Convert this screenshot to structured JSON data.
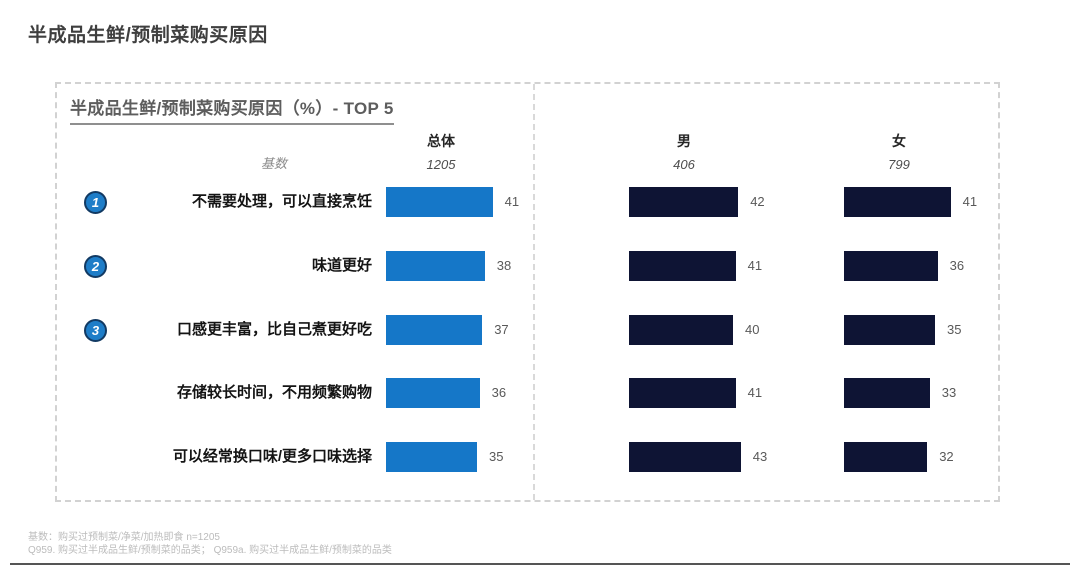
{
  "page": {
    "title": "半成品生鲜/预制菜购买原因",
    "footnotes": [
      "基数：购买过预制菜/净菜/加热即食 n=1205",
      "Q959. 购买过半成品生鲜/预制菜的品类； Q959a. 购买过半成品生鲜/预制菜的品类"
    ]
  },
  "chart_data": {
    "type": "bar",
    "orientation": "horizontal",
    "title": "半成品生鲜/预制菜购买原因（%）- TOP 5",
    "unit": "%",
    "xlim": [
      0,
      50
    ],
    "grid": false,
    "base_row_label": "基数",
    "categories": [
      "不需要处理，可以直接烹饪",
      "味道更好",
      "口感更丰富，比自己煮更好吃",
      "存储较长时间，不用频繁购物",
      "可以经常换口味/更多口味选择"
    ],
    "rank_badges": [
      "1",
      "2",
      "3"
    ],
    "series": [
      {
        "name": "总体",
        "base": "1205",
        "color": "#1577c8",
        "values": [
          41,
          38,
          37,
          36,
          35
        ]
      },
      {
        "name": "男",
        "base": "406",
        "color": "#0e1434",
        "values": [
          42,
          41,
          40,
          41,
          43
        ]
      },
      {
        "name": "女",
        "base": "799",
        "color": "#0e1434",
        "values": [
          41,
          36,
          35,
          33,
          32
        ]
      }
    ],
    "colors": {
      "overall_bar": "#1577c8",
      "gender_bar": "#0e1434",
      "rank_badge": "#1e7dc8"
    }
  }
}
